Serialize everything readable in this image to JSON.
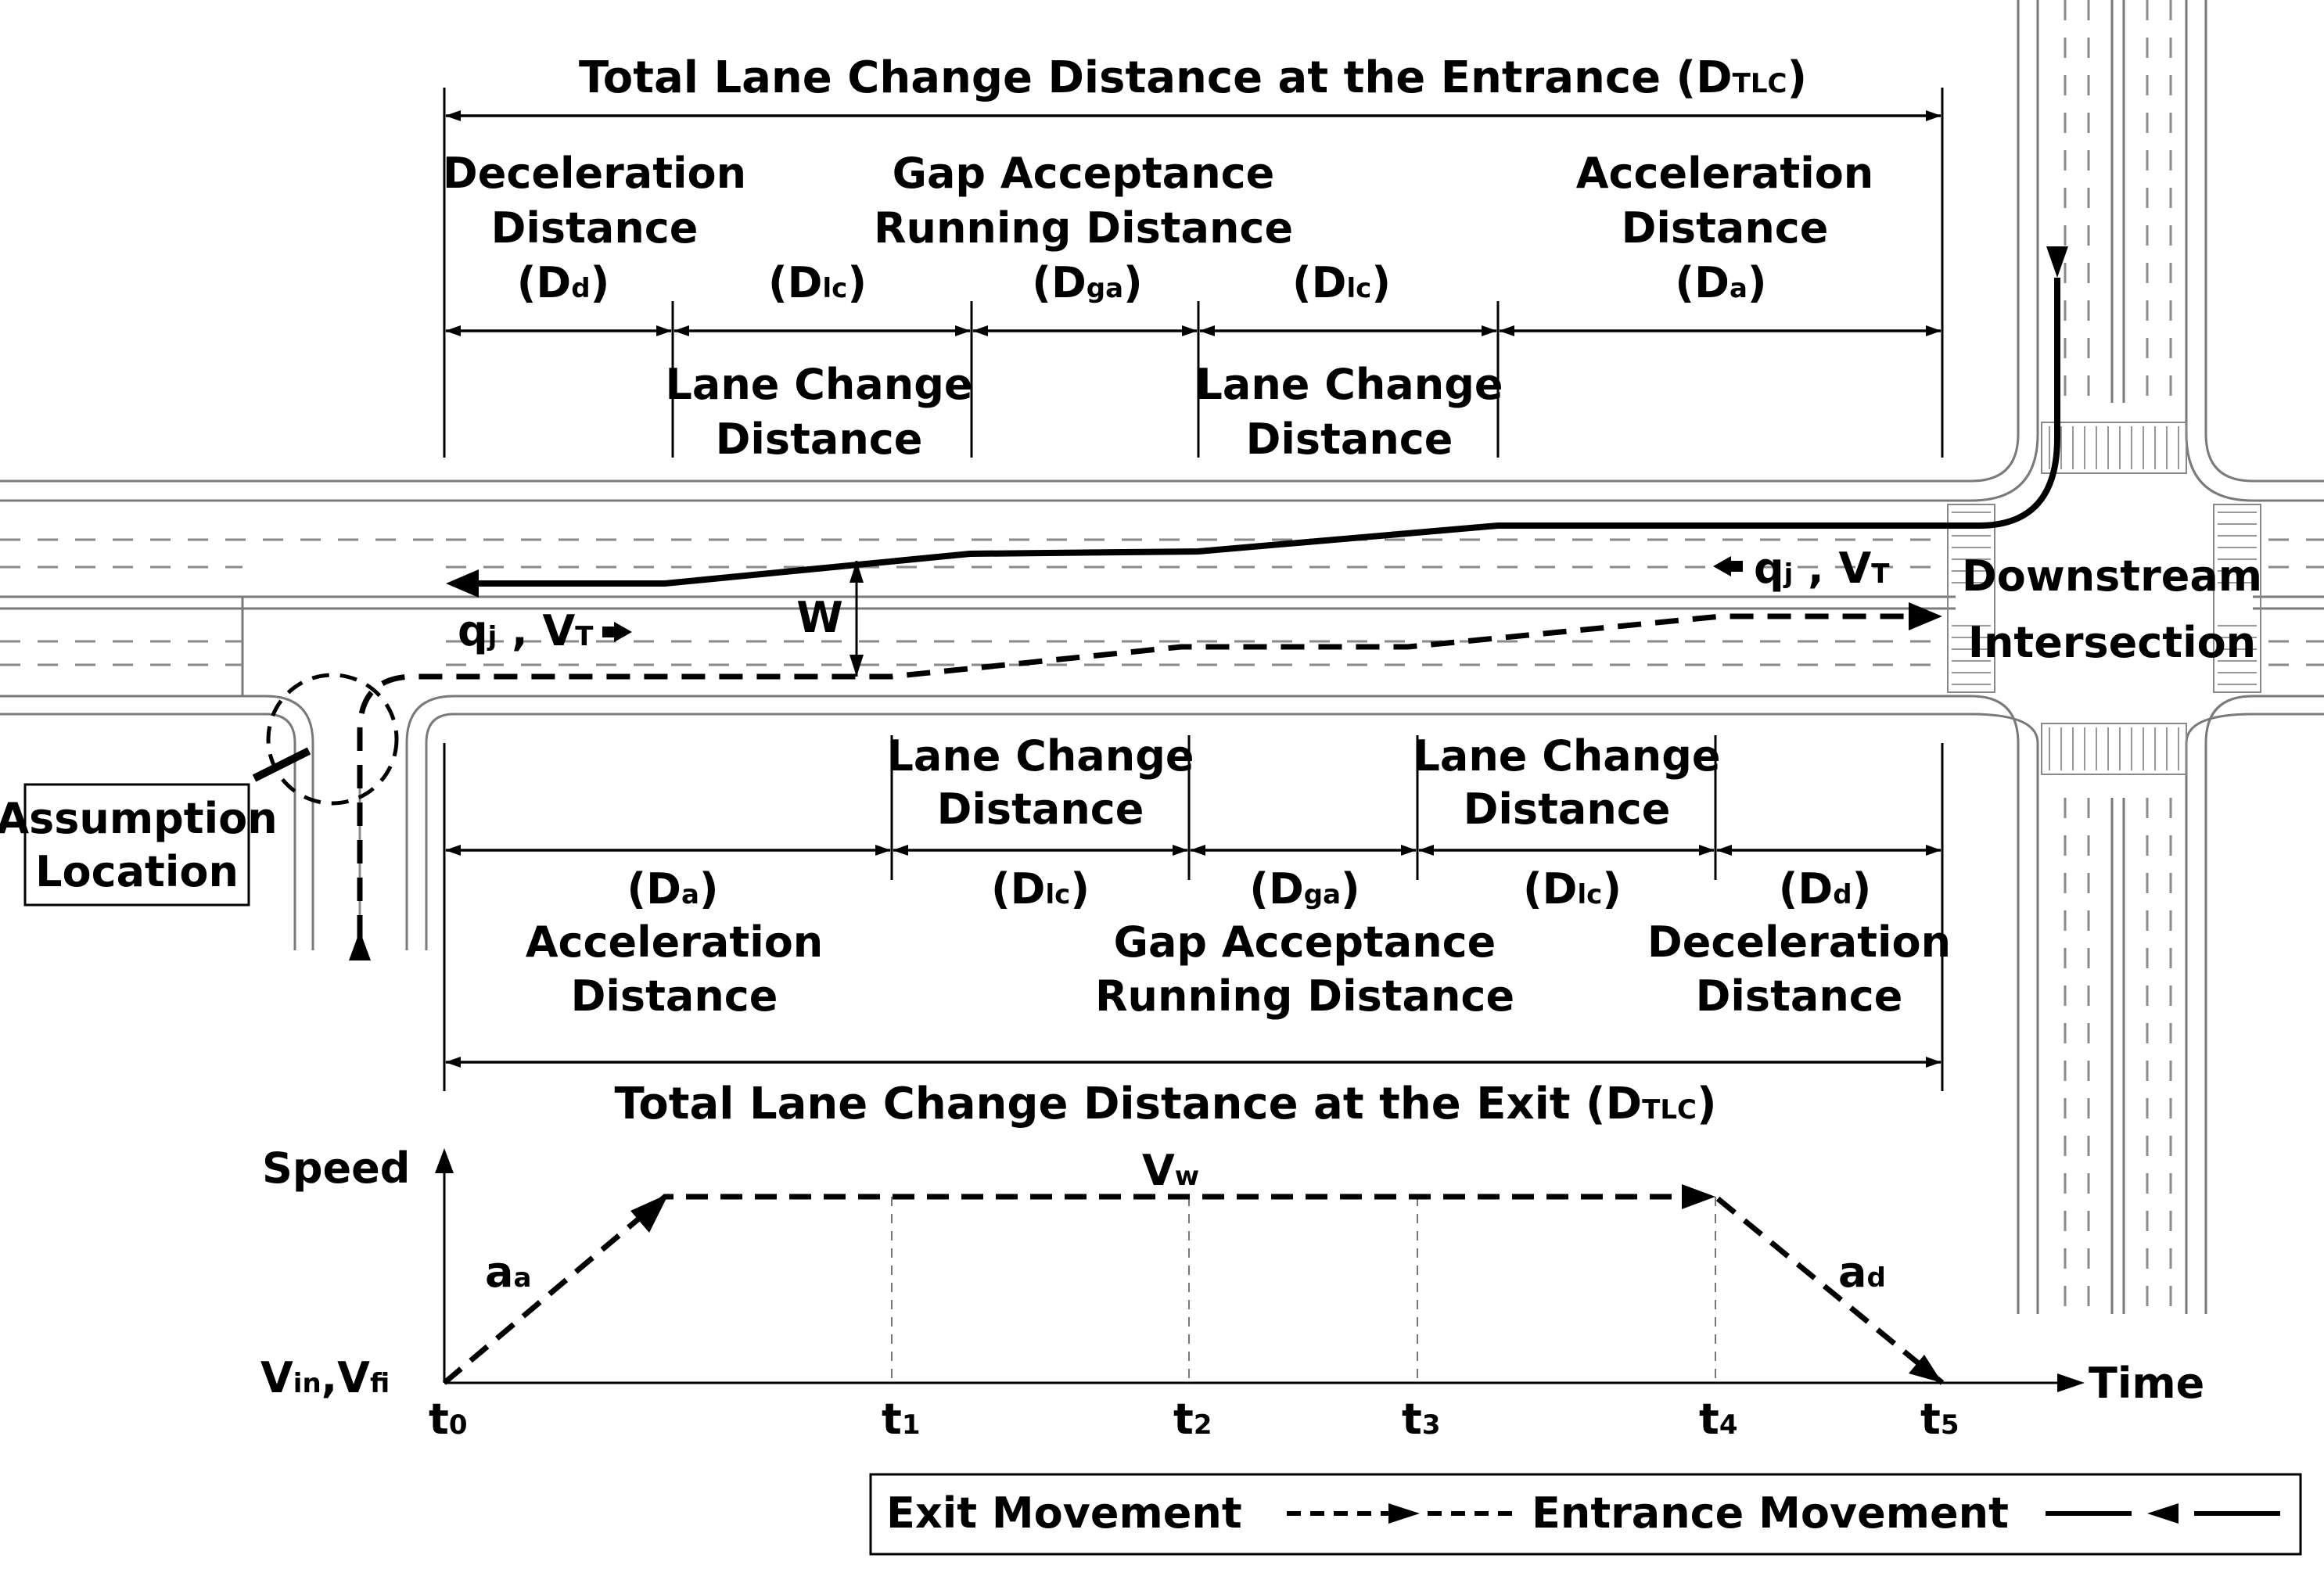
{
  "top": {
    "title": "Total Lane Change Distance at the Entrance",
    "title_symbol": "D",
    "title_sub": "TLC",
    "segments": [
      {
        "line1": "Deceleration",
        "line2": "Distance",
        "symbol": "D",
        "sub": "d"
      },
      {
        "line1": "Lane Change",
        "line2": "Distance",
        "symbol": "D",
        "sub": "lc"
      },
      {
        "line1": "Gap Acceptance",
        "line2": "Running Distance",
        "symbol": "D",
        "sub": "ga"
      },
      {
        "line1": "Lane Change",
        "line2": "Distance",
        "symbol": "D",
        "sub": "lc"
      },
      {
        "line1": "Acceleration",
        "line2": "Distance",
        "symbol": "D",
        "sub": "a"
      }
    ]
  },
  "bottom": {
    "title": "Total Lane Change Distance at the Exit",
    "title_symbol": "D",
    "title_sub": "TLC",
    "segments": [
      {
        "line1": "Acceleration",
        "line2": "Distance",
        "symbol": "D",
        "sub": "a"
      },
      {
        "line1": "Lane Change",
        "line2": "Distance",
        "symbol": "D",
        "sub": "lc"
      },
      {
        "line1": "Gap Acceptance",
        "line2": "Running Distance",
        "symbol": "D",
        "sub": "ga"
      },
      {
        "line1": "Lane Change",
        "line2": "Distance",
        "symbol": "D",
        "sub": "lc"
      },
      {
        "line1": "Deceleration",
        "line2": "Distance",
        "symbol": "D",
        "sub": "d"
      }
    ]
  },
  "road": {
    "flow_right": {
      "q": "q",
      "q_sub": "j",
      "v": "V",
      "v_sub": "T"
    },
    "flow_left": {
      "q": "q",
      "q_sub": "j",
      "v": "V",
      "v_sub": "T"
    },
    "weave_width": "W",
    "intersection_line1": "Downstream",
    "intersection_line2": "Intersection",
    "assumption_line1": "Assumption",
    "assumption_line2": "Location"
  },
  "speed_chart": {
    "y_axis_label": "Speed",
    "x_axis_label": "Time",
    "start_speed": {
      "a": "V",
      "a_sub": "in",
      "sep": ",",
      "b": "V",
      "b_sub": "fi"
    },
    "cruise_speed": {
      "main": "V",
      "sub": "w"
    },
    "accel_label": {
      "main": "a",
      "sub": "a"
    },
    "decel_label": {
      "main": "a",
      "sub": "d"
    },
    "time_ticks": [
      {
        "main": "t",
        "sub": "0"
      },
      {
        "main": "t",
        "sub": "1"
      },
      {
        "main": "t",
        "sub": "2"
      },
      {
        "main": "t",
        "sub": "3"
      },
      {
        "main": "t",
        "sub": "4"
      },
      {
        "main": "t",
        "sub": "5"
      }
    ]
  },
  "legend": {
    "exit_label": "Exit Movement",
    "entrance_label": "Entrance Movement"
  }
}
